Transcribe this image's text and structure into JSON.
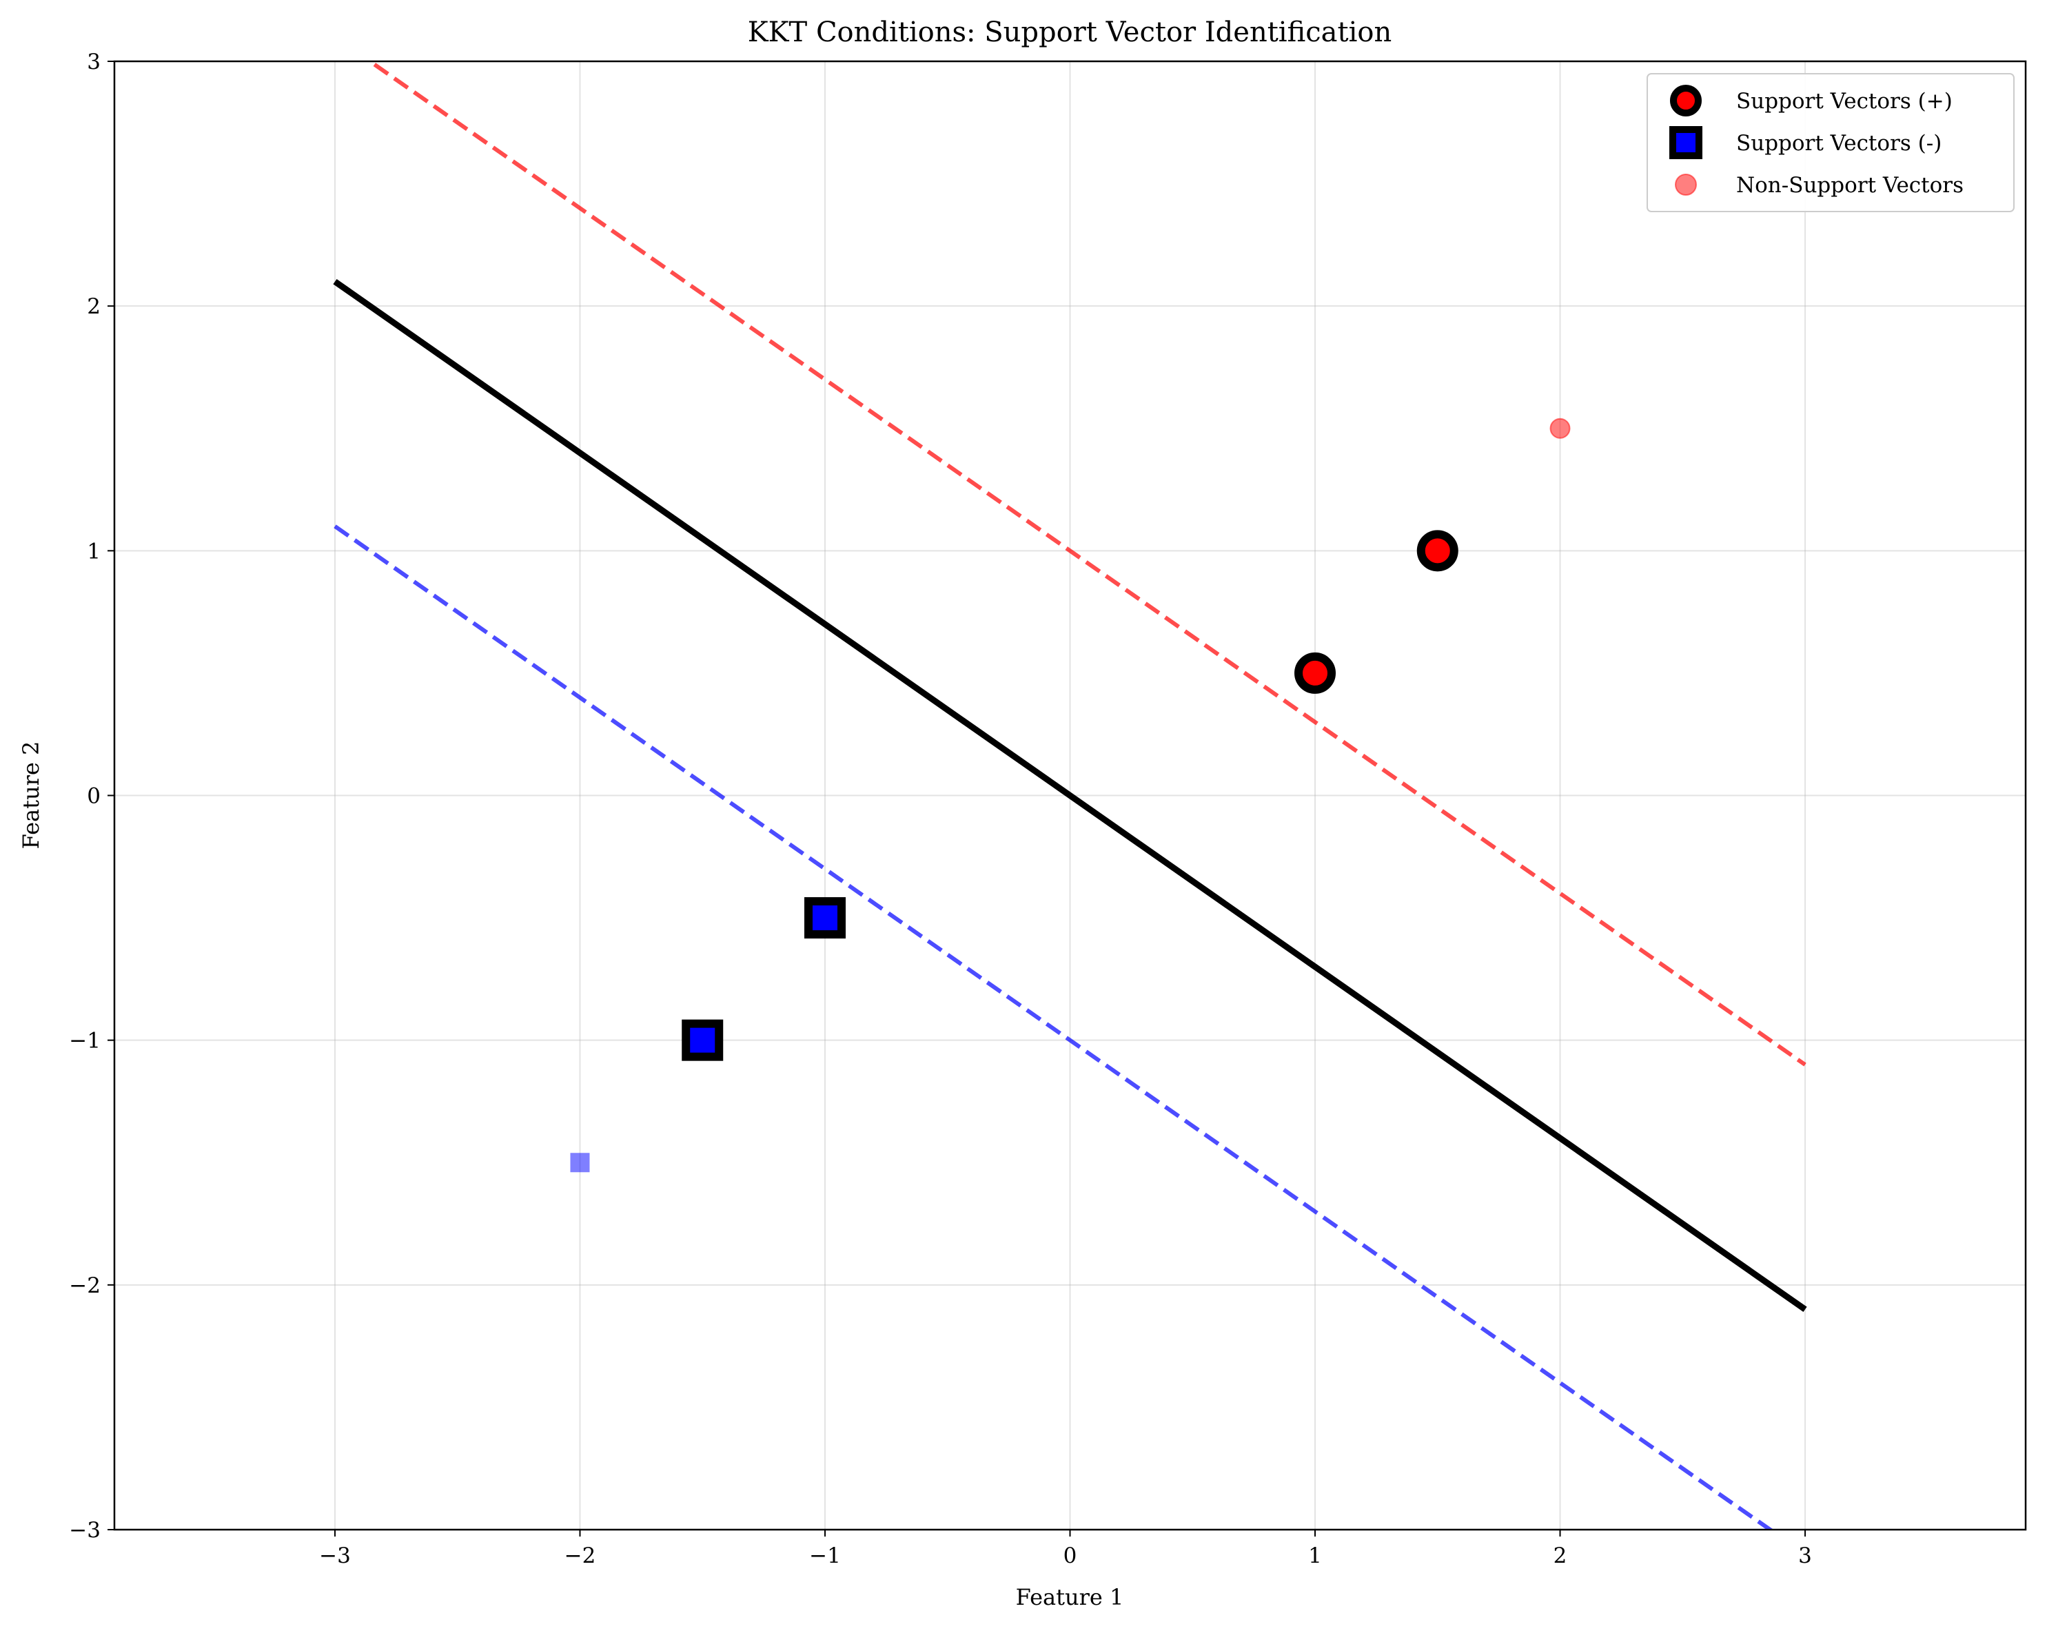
{
  "chart_data": {
    "type": "scatter",
    "title": "KKT Conditions: Support Vector Identification",
    "xlabel": "Feature 1",
    "ylabel": "Feature 2",
    "xlim": [
      -3.9,
      3.9
    ],
    "ylim": [
      -3,
      3
    ],
    "x_ticks": [
      -3,
      -2,
      -1,
      0,
      1,
      2,
      3
    ],
    "y_ticks": [
      -3,
      -2,
      -1,
      0,
      1,
      2,
      3
    ],
    "grid": true,
    "legend_position": "top-right",
    "lines": [
      {
        "style": "solid",
        "color": "#000000",
        "x": [
          -3,
          3
        ],
        "y": [
          2.1,
          -2.1
        ]
      },
      {
        "style": "dashed",
        "color": "#ff0000",
        "x": [
          -3,
          3
        ],
        "y": [
          3.1,
          -1.1
        ]
      },
      {
        "style": "dashed",
        "color": "#0000ff",
        "x": [
          -3,
          3
        ],
        "y": [
          1.1,
          -3.1
        ]
      }
    ],
    "series": [
      {
        "name": "Support Vectors (+)",
        "marker": "circle",
        "color": "#ff0000",
        "edge": "#000000",
        "points": [
          {
            "x": 1,
            "y": 0.5
          },
          {
            "x": 1.5,
            "y": 1
          }
        ]
      },
      {
        "name": "Support Vectors (-)",
        "marker": "square",
        "color": "#0000ff",
        "edge": "#000000",
        "points": [
          {
            "x": -1,
            "y": -0.5
          },
          {
            "x": -1.5,
            "y": -1
          }
        ]
      },
      {
        "name": "Non-Support Vectors",
        "marker": "circle",
        "color": "#ff0000",
        "alpha": 0.5,
        "points": [
          {
            "x": 2,
            "y": 1.5
          }
        ]
      },
      {
        "name": "",
        "marker": "square",
        "color": "#0000ff",
        "alpha": 0.5,
        "points": [
          {
            "x": -2,
            "y": -1.5
          }
        ]
      }
    ]
  }
}
